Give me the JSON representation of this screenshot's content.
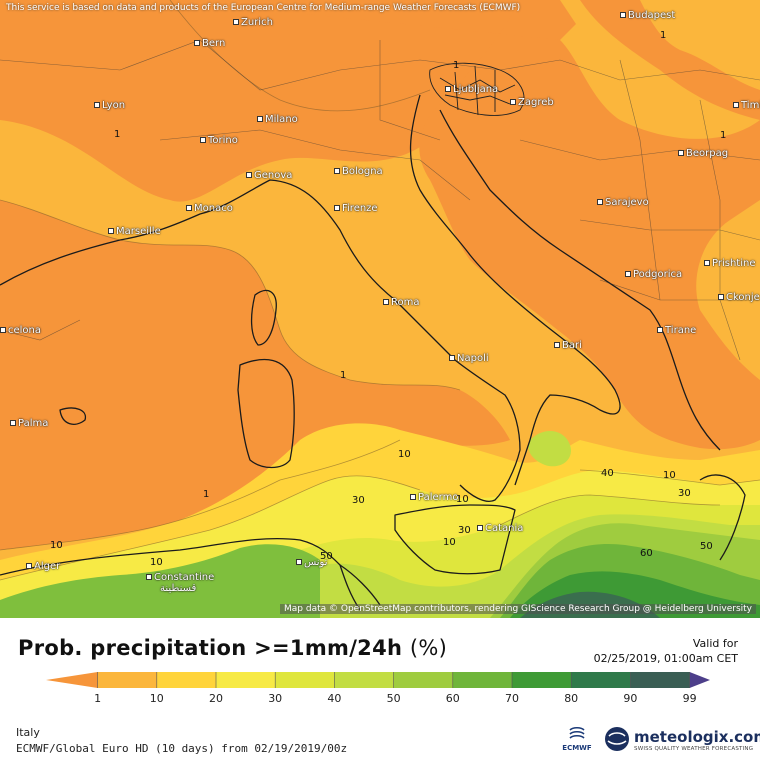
{
  "attribution_top": "This service is based on data and products of the European Centre for Medium-range Weather Forecasts (ECMWF)",
  "attribution_bottom": "Map data © OpenStreetMap contributors, rendering GIScience Research Group @ Heidelberg University",
  "title": "Prob. precipitation >=1mm/24h",
  "unit": "(%)",
  "valid_label": "Valid for",
  "valid_time": "02/25/2019, 01:00am CET",
  "region": "Italy",
  "model": "ECMWF/Global Euro HD (10 days) from 02/19/2019/00z",
  "ecmwf_label": "ECMWF",
  "brand_name": "meteologix.com",
  "brand_tagline": "SWISS QUALITY WEATHER FORECASTING",
  "legend": {
    "ticks": [
      "1",
      "10",
      "20",
      "30",
      "40",
      "50",
      "60",
      "70",
      "80",
      "90",
      "99"
    ],
    "colors": [
      "#f6953a",
      "#fbb63c",
      "#ffd43b",
      "#f7ea45",
      "#dfe63d",
      "#c2dd43",
      "#9fcc3f",
      "#6fb53a",
      "#3e9a35",
      "#2f7a4a",
      "#3a5e54",
      "#4d3f8a"
    ]
  },
  "cities": [
    {
      "name": "Bern"
    },
    {
      "name": "Zurich"
    },
    {
      "name": "Budapest"
    },
    {
      "name": "Lyon"
    },
    {
      "name": "Milano"
    },
    {
      "name": "Ljubljana"
    },
    {
      "name": "Zagreb"
    },
    {
      "name": "Timisoara"
    },
    {
      "name": "Torino"
    },
    {
      "name": "Beorpag"
    },
    {
      "name": "Genova"
    },
    {
      "name": "Bologna"
    },
    {
      "name": "Monaco"
    },
    {
      "name": "Firenze"
    },
    {
      "name": "Sarajevo"
    },
    {
      "name": "Marseille"
    },
    {
      "name": "Podgorica"
    },
    {
      "name": "Prishtine"
    },
    {
      "name": "Roma"
    },
    {
      "name": "Ckonje"
    },
    {
      "name": "celona"
    },
    {
      "name": "Tirane"
    },
    {
      "name": "Napoli"
    },
    {
      "name": "Bari"
    },
    {
      "name": "Palma"
    },
    {
      "name": "Palermo"
    },
    {
      "name": "Catania"
    },
    {
      "name": "Alger"
    },
    {
      "name": "Constantine"
    },
    {
      "name": "قسنطينة"
    },
    {
      "name": "تونس"
    }
  ],
  "contour_labels": [
    "1",
    "1",
    "1",
    "1",
    "1",
    "1",
    "10",
    "10",
    "10",
    "10",
    "10",
    "10",
    "30",
    "30",
    "30",
    "40",
    "50",
    "50",
    "60"
  ]
}
